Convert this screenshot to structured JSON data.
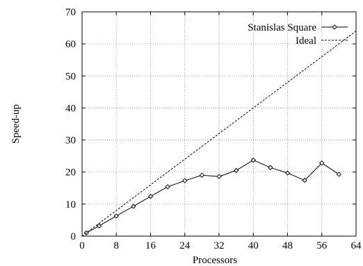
{
  "chart_data": {
    "type": "line",
    "title": "",
    "xlabel": "Processors",
    "ylabel": "Speed-up",
    "xlim": [
      0,
      64
    ],
    "ylim": [
      0,
      70
    ],
    "x_ticks": [
      0,
      8,
      16,
      24,
      32,
      40,
      48,
      56,
      64
    ],
    "y_ticks": [
      0,
      10,
      20,
      30,
      40,
      50,
      60,
      70
    ],
    "grid": true,
    "legend_position": "top-right",
    "series": [
      {
        "name": "Stanislas Square",
        "style": "solid-with-diamond-markers",
        "x": [
          1,
          4,
          8,
          12,
          16,
          20,
          24,
          28,
          32,
          36,
          40,
          44,
          48,
          52,
          56,
          60
        ],
        "y": [
          1,
          3.2,
          6.3,
          9.3,
          12.4,
          15.4,
          17.3,
          19,
          18.6,
          20.5,
          23.7,
          21.4,
          19.7,
          17.4,
          22.8,
          19.3
        ]
      },
      {
        "name": "Ideal",
        "style": "dashed",
        "x": [
          0,
          64
        ],
        "y": [
          0,
          64
        ]
      }
    ]
  }
}
